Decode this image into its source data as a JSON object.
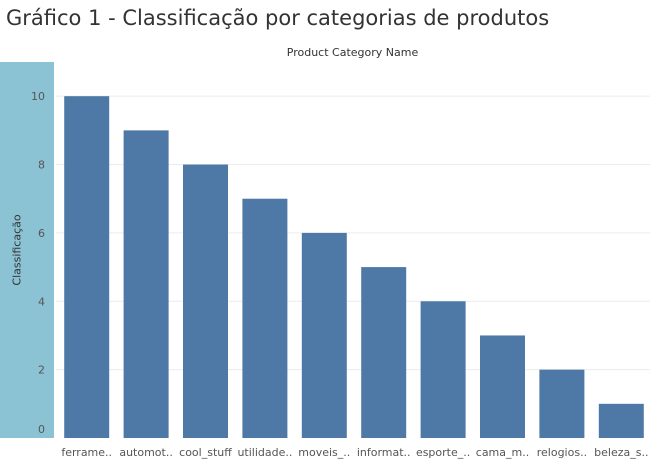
{
  "page": {
    "title": "Gráfico 1 - Classificação por categorias de produtos",
    "x_header": "Product Category Name"
  },
  "colors": {
    "bar": "#4e79a7",
    "y_band": "#8cc3d4",
    "grid": "#ececec"
  },
  "chart_data": {
    "type": "bar",
    "title": "Gráfico 1 - Classificação por categorias de produtos",
    "xlabel": "Product Category Name",
    "ylabel": "Classificação",
    "categories": [
      "ferrame..",
      "automot..",
      "cool_stuff",
      "utilidade..",
      "moveis_..",
      "informat..",
      "esporte_..",
      "cama_m..",
      "relogios..",
      "beleza_s.."
    ],
    "values": [
      10,
      9,
      8,
      7,
      6,
      5,
      4,
      3,
      2,
      1
    ],
    "ylim": [
      0,
      11
    ],
    "yticks": [
      0,
      2,
      4,
      6,
      8,
      10
    ],
    "grid": true,
    "legend": "none"
  }
}
